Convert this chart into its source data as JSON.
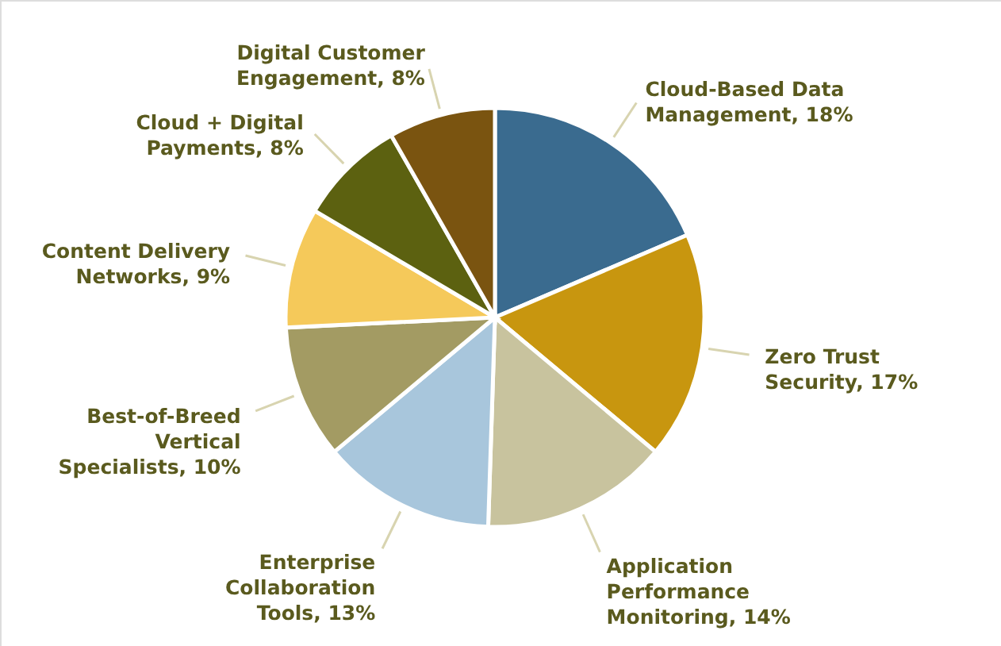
{
  "chart_data": {
    "type": "pie",
    "categories": [
      "Cloud-Based Data Management",
      "Zero Trust Security",
      "Application Performance Monitoring",
      "Enterprise Collaboration Tools",
      "Best-of-Breed Vertical Specialists",
      "Content Delivery Networks",
      "Cloud + Digital Payments",
      "Digital Customer Engagement"
    ],
    "values": [
      18,
      17,
      14,
      13,
      10,
      9,
      8,
      8
    ],
    "value_labels": [
      "18%",
      "17%",
      "14%",
      "13%",
      "10%",
      "9%",
      "8%",
      "8%"
    ],
    "colors": [
      "#3a6b8f",
      "#c8960f",
      "#c8c39e",
      "#a8c6dc",
      "#a39b63",
      "#f5c95a",
      "#5c6110",
      "#7a5410"
    ]
  }
}
